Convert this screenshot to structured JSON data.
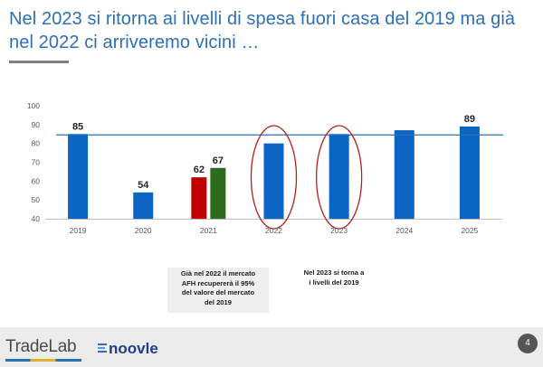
{
  "title": "Nel 2023 si ritorna ai livelli di spesa fuori casa del 2019 ma già nel 2022 ci arriveremo vicini …",
  "chart_data": {
    "type": "bar",
    "categories": [
      "2019",
      "2020",
      "2021",
      "2022",
      "2023",
      "2024",
      "2025"
    ],
    "bars": [
      {
        "category": "2019",
        "value": 85,
        "label": "85",
        "color": "#0a66c2"
      },
      {
        "category": "2020",
        "value": 54,
        "label": "54",
        "color": "#0a66c2"
      },
      {
        "category": "2021",
        "value": 62,
        "label": "62",
        "color": "#c00000"
      },
      {
        "category": "2021",
        "value": 67,
        "label": "67",
        "color": "#2e6b1e"
      },
      {
        "category": "2022",
        "value": 80,
        "label": "",
        "color": "#0a66c2"
      },
      {
        "category": "2023",
        "value": 85,
        "label": "",
        "color": "#0a66c2"
      },
      {
        "category": "2024",
        "value": 87,
        "label": "",
        "color": "#0a66c2"
      },
      {
        "category": "2025",
        "value": 89,
        "label": "89",
        "color": "#0a66c2"
      }
    ],
    "yticks": [
      "40",
      "50",
      "60",
      "70",
      "80",
      "90",
      "100"
    ],
    "ylim": [
      40,
      100
    ],
    "reference_line": {
      "value": 85,
      "color": "#2f6fb3"
    },
    "highlighted_categories": [
      "2022",
      "2023"
    ],
    "highlight_color": "#b22222",
    "xlabel": "",
    "ylabel": ""
  },
  "notes": {
    "note_2022": "Già nel 2022 il mercato\nAFH recupererà il 95%\ndel valore del mercato\ndel 2019",
    "note_2023": "Nel 2023 si torna a\ni livelli del 2019"
  },
  "footer": {
    "logo_left": "TradeLab",
    "logo_right": "noovle",
    "page_number": "4"
  }
}
